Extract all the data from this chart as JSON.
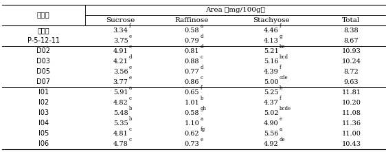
{
  "header_main": "Area （mg/100g）",
  "col0_header": "계통명",
  "col_headers": [
    "Sucrose",
    "Raffinose",
    "Stachyose",
    "Total"
  ],
  "rows": [
    {
      "name": "팜단콩",
      "sucrose": "3.34",
      "suc_sup": "f",
      "raff": "0.58",
      "raff_sup": "a",
      "stach": "4.46",
      "stach_sup": "f",
      "total": "8.38"
    },
    {
      "name": "P-5-12-11",
      "sucrose": "3.75",
      "suc_sup": "e",
      "raff": "0.79",
      "raff_sup": "d",
      "stach": "4.13",
      "stach_sup": "g",
      "total": "8.67"
    },
    {
      "name": "D02",
      "sucrose": "4.91",
      "suc_sup": "c",
      "raff": "0.81",
      "raff_sup": "d",
      "stach": "5.21",
      "stach_sup": "bc",
      "total": "10.93"
    },
    {
      "name": "D03",
      "sucrose": "4.21",
      "suc_sup": "d",
      "raff": "0.88",
      "raff_sup": "c",
      "stach": "5.16",
      "stach_sup": "bcd",
      "total": "10.24"
    },
    {
      "name": "D05",
      "sucrose": "3.56",
      "suc_sup": "e",
      "raff": "0.77",
      "raff_sup": "d",
      "stach": "4.39",
      "stach_sup": "f",
      "total": "8.72"
    },
    {
      "name": "D07",
      "sucrose": "3.77",
      "suc_sup": "e",
      "raff": "0.86",
      "raff_sup": "c",
      "stach": "5.00",
      "stach_sup": "cde",
      "total": "9.63"
    },
    {
      "name": "I01",
      "sucrose": "5.91",
      "suc_sup": "a",
      "raff": "0.65",
      "raff_sup": "f",
      "stach": "5.25",
      "stach_sup": "b",
      "total": "11.81"
    },
    {
      "name": "I02",
      "sucrose": "4.82",
      "suc_sup": "c",
      "raff": "1.01",
      "raff_sup": "b",
      "stach": "4.37",
      "stach_sup": "f",
      "total": "10.20"
    },
    {
      "name": "I03",
      "sucrose": "5.48",
      "suc_sup": "b",
      "raff": "0.58",
      "raff_sup": "gh",
      "stach": "5.02",
      "stach_sup": "bcde",
      "total": "11.08"
    },
    {
      "name": "I04",
      "sucrose": "5.35",
      "suc_sup": "b",
      "raff": "1.10",
      "raff_sup": "a",
      "stach": "4.90",
      "stach_sup": "e",
      "total": "11.36"
    },
    {
      "name": "I05",
      "sucrose": "4.81",
      "suc_sup": "c",
      "raff": "0.62",
      "raff_sup": "fg",
      "stach": "5.56",
      "stach_sup": "a",
      "total": "11.00"
    },
    {
      "name": "I06",
      "sucrose": "4.78",
      "suc_sup": "c",
      "raff": "0.73",
      "raff_sup": "e",
      "stach": "4.92",
      "stach_sup": "de",
      "total": "10.43"
    }
  ],
  "group_separators": [
    2,
    6
  ],
  "font_size": 7.0,
  "header_font_size": 7.5,
  "sup_font_size": 5.0
}
